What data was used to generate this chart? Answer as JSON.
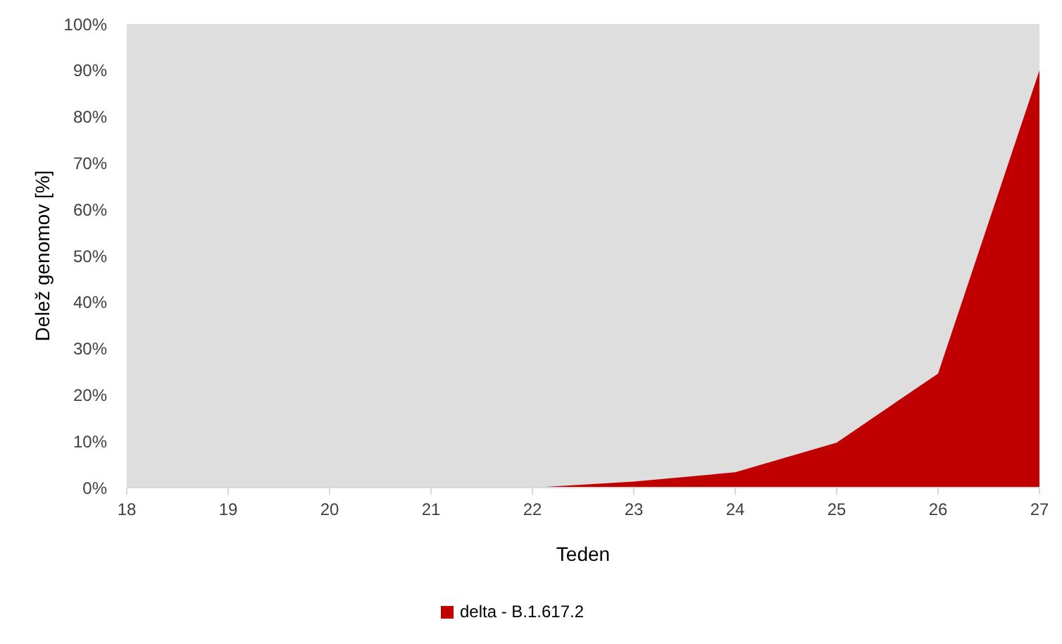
{
  "chart_data": {
    "type": "area",
    "xlabel": "Teden",
    "ylabel": "Delež genomov [%]",
    "x": [
      18,
      19,
      20,
      21,
      22,
      23,
      24,
      25,
      26,
      27
    ],
    "series": [
      {
        "name": "delta - B.1.617.2",
        "color": "#c00000",
        "values": [
          0,
          0,
          0,
          0,
          0,
          1.3,
          3.3,
          9.7,
          24.6,
          90
        ]
      }
    ],
    "xlim": [
      18,
      27
    ],
    "xticks": [
      18,
      19,
      20,
      21,
      22,
      23,
      24,
      25,
      26,
      27
    ],
    "ylim": [
      0,
      100
    ],
    "yticks": [
      {
        "value": 0,
        "label": "0%"
      },
      {
        "value": 10,
        "label": "10%"
      },
      {
        "value": 20,
        "label": "20%"
      },
      {
        "value": 30,
        "label": "30%"
      },
      {
        "value": 40,
        "label": "40%"
      },
      {
        "value": 50,
        "label": "50%"
      },
      {
        "value": 60,
        "label": "60%"
      },
      {
        "value": 70,
        "label": "70%"
      },
      {
        "value": 80,
        "label": "80%"
      },
      {
        "value": 90,
        "label": "90%"
      },
      {
        "value": 100,
        "label": "100%"
      }
    ],
    "legend": "bottom"
  }
}
